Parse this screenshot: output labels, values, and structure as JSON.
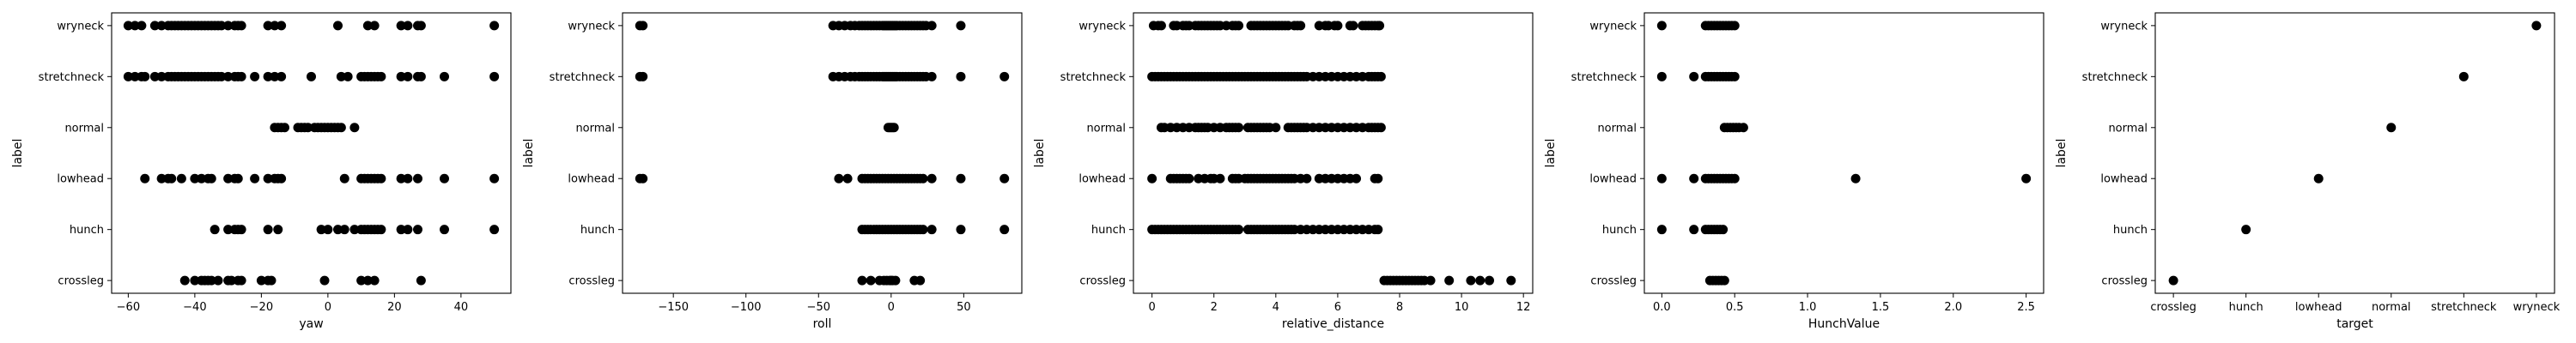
{
  "chart_data": [
    {
      "type": "scatter",
      "xlabel": "yaw",
      "ylabel": "label",
      "categories": [
        "crossleg",
        "hunch",
        "lowhead",
        "normal",
        "stretchneck",
        "wryneck"
      ],
      "xlim": [
        -65,
        55
      ],
      "xticks": [
        -60,
        -40,
        -20,
        0,
        20,
        40
      ],
      "xticklabels": [
        "−60",
        "−40",
        "−20",
        "0",
        "20",
        "40"
      ],
      "series": [
        {
          "category": "wryneck",
          "x": [
            -60,
            -58,
            -56,
            -52,
            -50,
            -48,
            -47,
            -46,
            -45,
            -44,
            -43,
            -42,
            -41,
            -40,
            -39,
            -38,
            -37,
            -36,
            -35,
            -34,
            -33,
            -32,
            -30,
            -28,
            -27,
            -26,
            -18,
            -16,
            -14,
            3,
            12,
            14,
            22,
            24,
            27,
            28,
            50
          ]
        },
        {
          "category": "stretchneck",
          "x": [
            -60,
            -58,
            -56,
            -55,
            -52,
            -50,
            -48,
            -47,
            -46,
            -45,
            -44,
            -43,
            -42,
            -41,
            -40,
            -39,
            -38,
            -37,
            -36,
            -35,
            -34,
            -33,
            -32,
            -30,
            -28,
            -27,
            -26,
            -22,
            -18,
            -16,
            -14,
            -5,
            4,
            6,
            10,
            11,
            12,
            13,
            14,
            15,
            16,
            22,
            24,
            27,
            28,
            35,
            50
          ]
        },
        {
          "category": "normal",
          "x": [
            -16,
            -15,
            -14,
            -13,
            -9,
            -8,
            -7,
            -6,
            -4,
            -3,
            -2,
            -1,
            0,
            1,
            2,
            3,
            4,
            8
          ]
        },
        {
          "category": "lowhead",
          "x": [
            -55,
            -50,
            -48,
            -47,
            -44,
            -40,
            -38,
            -36,
            -35,
            -30,
            -28,
            -27,
            -22,
            -18,
            -16,
            -15,
            -14,
            5,
            10,
            11,
            12,
            13,
            14,
            15,
            16,
            22,
            24,
            27,
            35,
            50
          ]
        },
        {
          "category": "hunch",
          "x": [
            -34,
            -30,
            -28,
            -27,
            -26,
            -18,
            -15,
            -2,
            0,
            3,
            5,
            8,
            10,
            11,
            12,
            13,
            14,
            15,
            16,
            22,
            24,
            27,
            35,
            50
          ]
        },
        {
          "category": "crossleg",
          "x": [
            -43,
            -40,
            -38,
            -37,
            -36,
            -35,
            -33,
            -30,
            -29,
            -27,
            -26,
            -20,
            -18,
            -17,
            -1,
            10,
            12,
            14,
            28
          ]
        }
      ]
    },
    {
      "type": "scatter",
      "xlabel": "roll",
      "ylabel": "label",
      "categories": [
        "crossleg",
        "hunch",
        "lowhead",
        "normal",
        "stretchneck",
        "wryneck"
      ],
      "xlim": [
        -185,
        90
      ],
      "xticks": [
        -150,
        -100,
        -50,
        0,
        50
      ],
      "xticklabels": [
        "−150",
        "−100",
        "−50",
        "0",
        "50"
      ],
      "series": [
        {
          "category": "wryneck",
          "x": [
            -173,
            -171,
            -40,
            -36,
            -32,
            -28,
            -25,
            -22,
            -20,
            -18,
            -16,
            -14,
            -12,
            -10,
            -8,
            -6,
            -5,
            -4,
            -3,
            -2,
            -1,
            0,
            1,
            2,
            3,
            4,
            6,
            8,
            10,
            12,
            14,
            16,
            18,
            20,
            22,
            24,
            28,
            48
          ]
        },
        {
          "category": "stretchneck",
          "x": [
            -173,
            -171,
            -40,
            -36,
            -32,
            -28,
            -25,
            -22,
            -20,
            -18,
            -16,
            -14,
            -12,
            -10,
            -8,
            -6,
            -5,
            -4,
            -3,
            -2,
            -1,
            0,
            1,
            2,
            3,
            4,
            6,
            8,
            10,
            12,
            14,
            16,
            18,
            20,
            22,
            24,
            28,
            48,
            78
          ]
        },
        {
          "category": "normal",
          "x": [
            -2,
            -1,
            0,
            1,
            2
          ]
        },
        {
          "category": "lowhead",
          "x": [
            -173,
            -171,
            -36,
            -30,
            -20,
            -18,
            -16,
            -14,
            -12,
            -10,
            -8,
            -6,
            -4,
            -2,
            0,
            2,
            4,
            6,
            8,
            10,
            12,
            14,
            16,
            18,
            20,
            22,
            28,
            48,
            78
          ]
        },
        {
          "category": "hunch",
          "x": [
            -20,
            -18,
            -16,
            -14,
            -12,
            -10,
            -8,
            -6,
            -4,
            -2,
            0,
            2,
            4,
            6,
            8,
            10,
            12,
            14,
            16,
            18,
            20,
            22,
            28,
            48,
            78
          ]
        },
        {
          "category": "crossleg",
          "x": [
            -20,
            -14,
            -8,
            -5,
            -3,
            -1,
            0,
            1,
            3,
            16,
            20
          ]
        }
      ]
    },
    {
      "type": "scatter",
      "xlabel": "relative_distance",
      "ylabel": "label",
      "categories": [
        "crossleg",
        "hunch",
        "lowhead",
        "normal",
        "stretchneck",
        "wryneck"
      ],
      "xlim": [
        -0.6,
        12.3
      ],
      "xticks": [
        0,
        2,
        4,
        6,
        8,
        10,
        12
      ],
      "xticklabels": [
        "0",
        "2",
        "4",
        "6",
        "8",
        "10",
        "12"
      ],
      "series": [
        {
          "category": "wryneck",
          "x": [
            0.05,
            0.2,
            0.3,
            0.7,
            0.8,
            1.0,
            1.1,
            1.2,
            1.4,
            1.5,
            1.6,
            1.7,
            1.8,
            1.9,
            2.0,
            2.1,
            2.2,
            2.4,
            2.6,
            2.7,
            2.8,
            3.2,
            3.3,
            3.4,
            3.5,
            3.6,
            3.7,
            3.8,
            3.9,
            4.0,
            4.1,
            4.2,
            4.3,
            4.4,
            4.6,
            4.7,
            4.8,
            5.4,
            5.6,
            5.7,
            5.9,
            6.0,
            6.4,
            6.5,
            6.8,
            6.9,
            7.0,
            7.1,
            7.2,
            7.3,
            7.35
          ]
        },
        {
          "category": "stretchneck",
          "x": [
            0.0,
            0.1,
            0.2,
            0.3,
            0.4,
            0.5,
            0.6,
            0.7,
            0.8,
            0.9,
            1.0,
            1.1,
            1.2,
            1.3,
            1.4,
            1.5,
            1.6,
            1.7,
            1.8,
            1.9,
            2.0,
            2.1,
            2.2,
            2.3,
            2.4,
            2.5,
            2.6,
            2.7,
            2.8,
            2.9,
            3.0,
            3.1,
            3.2,
            3.3,
            3.4,
            3.5,
            3.6,
            3.7,
            3.8,
            3.9,
            4.0,
            4.1,
            4.2,
            4.3,
            4.4,
            4.5,
            4.6,
            4.7,
            4.8,
            4.9,
            5.0,
            5.2,
            5.4,
            5.6,
            5.8,
            6.0,
            6.2,
            6.4,
            6.6,
            6.8,
            7.0,
            7.1,
            7.2,
            7.3,
            7.4
          ]
        },
        {
          "category": "normal",
          "x": [
            0.3,
            0.4,
            0.6,
            0.8,
            1.0,
            1.2,
            1.4,
            1.5,
            1.6,
            1.7,
            1.8,
            2.0,
            2.2,
            2.4,
            2.5,
            2.6,
            2.7,
            2.8,
            3.1,
            3.2,
            3.3,
            3.4,
            3.5,
            3.6,
            3.7,
            3.8,
            4.0,
            4.4,
            4.5,
            4.6,
            4.7,
            4.8,
            4.9,
            5.0,
            5.2,
            5.4,
            5.6,
            5.8,
            6.0,
            6.2,
            6.4,
            6.6,
            6.8,
            7.0,
            7.1,
            7.2,
            7.3,
            7.4
          ]
        },
        {
          "category": "lowhead",
          "x": [
            0.0,
            0.6,
            0.7,
            0.8,
            0.9,
            1.0,
            1.1,
            1.2,
            1.5,
            1.7,
            1.9,
            2.0,
            2.2,
            2.6,
            2.7,
            2.8,
            3.0,
            3.1,
            3.2,
            3.3,
            3.4,
            3.5,
            3.6,
            3.7,
            3.8,
            3.9,
            4.0,
            4.1,
            4.2,
            4.3,
            4.4,
            4.5,
            4.6,
            4.8,
            5.0,
            5.4,
            5.6,
            5.8,
            6.0,
            6.2,
            6.4,
            6.6,
            7.2,
            7.3
          ]
        },
        {
          "category": "hunch",
          "x": [
            0.0,
            0.1,
            0.2,
            0.3,
            0.4,
            0.5,
            0.6,
            0.7,
            0.8,
            0.9,
            1.0,
            1.1,
            1.2,
            1.3,
            1.4,
            1.5,
            1.6,
            1.7,
            1.8,
            1.9,
            2.0,
            2.1,
            2.2,
            2.3,
            2.4,
            2.5,
            2.6,
            2.7,
            2.8,
            3.1,
            3.2,
            3.3,
            3.4,
            3.5,
            3.6,
            3.7,
            3.8,
            3.9,
            4.0,
            4.1,
            4.2,
            4.3,
            4.4,
            4.5,
            4.6,
            4.8,
            5.0,
            5.2,
            5.4,
            5.6,
            5.8,
            6.0,
            6.2,
            6.4,
            6.6,
            6.8,
            7.0,
            7.2,
            7.3
          ]
        },
        {
          "category": "crossleg",
          "x": [
            7.5,
            7.6,
            7.7,
            7.8,
            7.9,
            8.0,
            8.1,
            8.2,
            8.3,
            8.4,
            8.5,
            8.6,
            8.7,
            8.8,
            9.0,
            9.6,
            10.3,
            10.6,
            10.9,
            11.6
          ]
        }
      ]
    },
    {
      "type": "scatter",
      "xlabel": "HunchValue",
      "ylabel": "label",
      "categories": [
        "crossleg",
        "hunch",
        "lowhead",
        "normal",
        "stretchneck",
        "wryneck"
      ],
      "xlim": [
        -0.12,
        2.62
      ],
      "xticks": [
        0.0,
        0.5,
        1.0,
        1.5,
        2.0,
        2.5
      ],
      "xticklabels": [
        "0.0",
        "0.5",
        "1.0",
        "1.5",
        "2.0",
        "2.5"
      ],
      "series": [
        {
          "category": "wryneck",
          "x": [
            0.0,
            0.3,
            0.32,
            0.34,
            0.36,
            0.38,
            0.4,
            0.42,
            0.44,
            0.46,
            0.48,
            0.5
          ]
        },
        {
          "category": "stretchneck",
          "x": [
            0.0,
            0.22,
            0.3,
            0.32,
            0.34,
            0.36,
            0.38,
            0.4,
            0.42,
            0.44,
            0.46,
            0.48,
            0.5
          ]
        },
        {
          "category": "normal",
          "x": [
            0.43,
            0.45,
            0.47,
            0.49,
            0.51,
            0.53,
            0.56
          ]
        },
        {
          "category": "lowhead",
          "x": [
            0.0,
            0.22,
            0.3,
            0.32,
            0.34,
            0.36,
            0.38,
            0.4,
            0.42,
            0.44,
            0.46,
            0.48,
            0.5,
            1.33,
            2.5
          ]
        },
        {
          "category": "hunch",
          "x": [
            0.0,
            0.22,
            0.3,
            0.32,
            0.34,
            0.36,
            0.38,
            0.4,
            0.42
          ]
        },
        {
          "category": "crossleg",
          "x": [
            0.33,
            0.35,
            0.37,
            0.39,
            0.41,
            0.43
          ]
        }
      ]
    },
    {
      "type": "scatter",
      "xlabel": "target",
      "ylabel": "label",
      "categories": [
        "crossleg",
        "hunch",
        "lowhead",
        "normal",
        "stretchneck",
        "wryneck"
      ],
      "xcategories": [
        "crossleg",
        "hunch",
        "lowhead",
        "normal",
        "stretchneck",
        "wryneck"
      ],
      "series": [
        {
          "category": "wryneck",
          "x": [
            "wryneck"
          ]
        },
        {
          "category": "stretchneck",
          "x": [
            "stretchneck"
          ]
        },
        {
          "category": "normal",
          "x": [
            "normal"
          ]
        },
        {
          "category": "lowhead",
          "x": [
            "lowhead"
          ]
        },
        {
          "category": "hunch",
          "x": [
            "hunch"
          ]
        },
        {
          "category": "crossleg",
          "x": [
            "crossleg"
          ]
        }
      ]
    }
  ]
}
